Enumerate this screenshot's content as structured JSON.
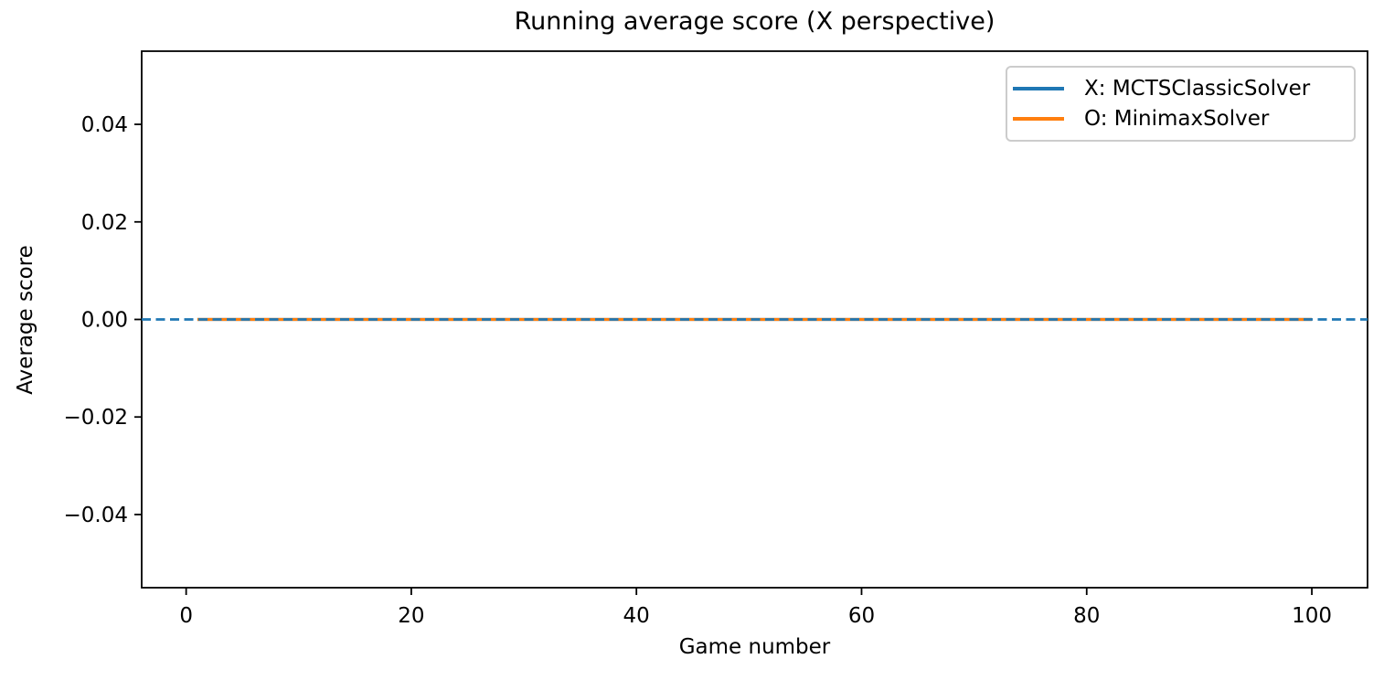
{
  "chart_data": {
    "type": "line",
    "title": "Running average score (X perspective)",
    "xlabel": "Game number",
    "ylabel": "Average score",
    "xlim": [
      -3.95,
      104.95
    ],
    "ylim": [
      -0.055,
      0.055
    ],
    "xticks": [
      0,
      20,
      40,
      60,
      80,
      100
    ],
    "xtick_labels": [
      "0",
      "20",
      "40",
      "60",
      "80",
      "100"
    ],
    "yticks": [
      -0.04,
      -0.02,
      0,
      0.02,
      0.04
    ],
    "ytick_labels": [
      "−0.04",
      "−0.02",
      "0.00",
      "0.02",
      "0.04"
    ],
    "grid": false,
    "legend": {
      "position": "upper right",
      "border_color": "#cccccc"
    },
    "series": [
      {
        "name": "X: MCTSClassicSolver",
        "color": "#1f77b4",
        "line_style": "solid",
        "points": [
          [
            1,
            0
          ],
          [
            100,
            0
          ]
        ]
      },
      {
        "name": "O: MinimaxSolver",
        "color": "#ff7f0e",
        "line_style": "solid",
        "points": [
          [
            1,
            0
          ],
          [
            100,
            0
          ]
        ]
      }
    ],
    "reference_lines": [
      {
        "orientation": "horizontal",
        "value": 0,
        "color": "#1f77b4",
        "line_style": "dashed"
      }
    ],
    "axis_color": "#000000",
    "background_color": "#ffffff"
  }
}
